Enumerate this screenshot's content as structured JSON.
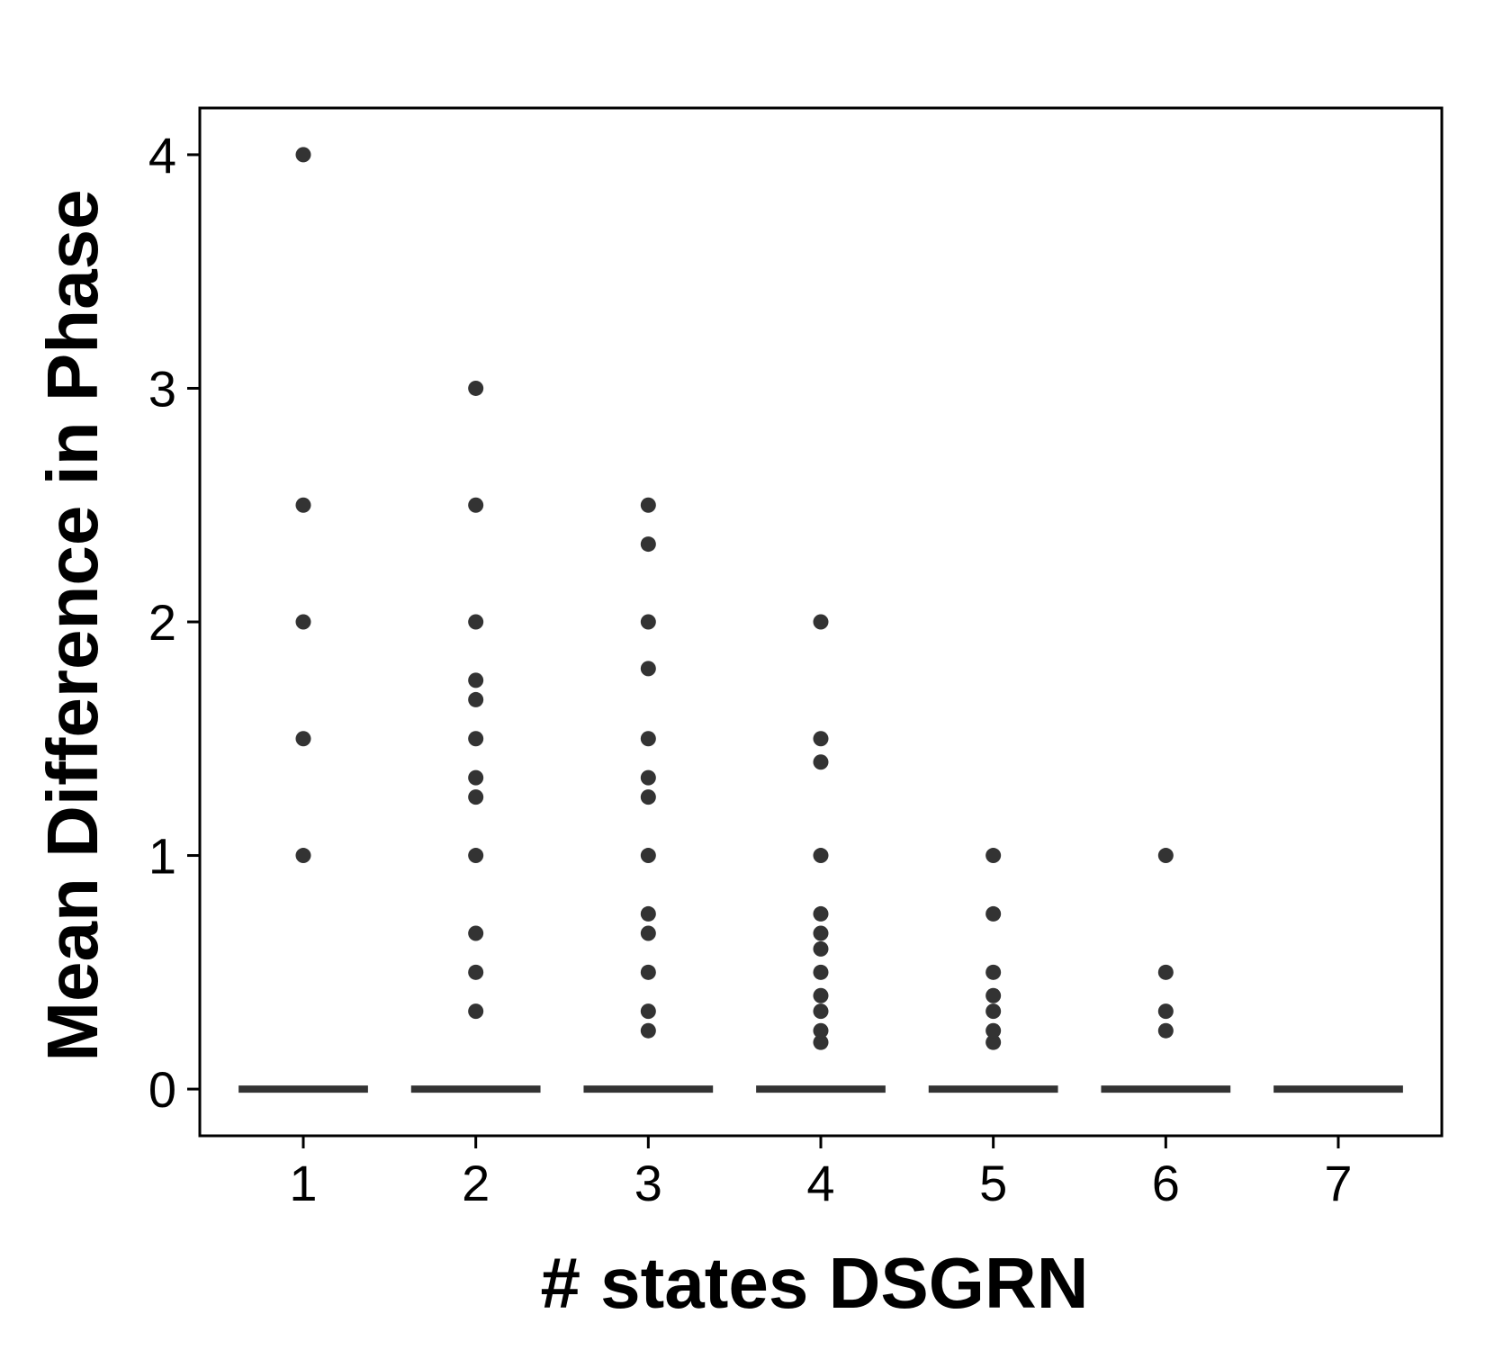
{
  "chart_data": {
    "type": "scatter",
    "title": "",
    "xlabel": "# states DSGRN",
    "ylabel": "Mean Difference in Phase",
    "xlim": [
      0.4,
      7.6
    ],
    "ylim": [
      -0.2,
      4.2
    ],
    "x_ticks": [
      "1",
      "2",
      "3",
      "4",
      "5",
      "6",
      "7"
    ],
    "y_ticks": [
      "0",
      "1",
      "2",
      "3",
      "4"
    ],
    "grid": false,
    "legend": "none",
    "colors": {
      "points": "#333333",
      "median": "#333333",
      "axis": "#000000"
    },
    "groups": [
      {
        "x": 1,
        "median": 0,
        "outliers": [
          1,
          1.5,
          2,
          2.5,
          4
        ]
      },
      {
        "x": 2,
        "median": 0,
        "outliers": [
          0.333,
          0.5,
          0.667,
          1,
          1.25,
          1.333,
          1.5,
          1.667,
          1.75,
          2,
          2.5,
          3
        ]
      },
      {
        "x": 3,
        "median": 0,
        "outliers": [
          0.25,
          0.333,
          0.5,
          0.667,
          0.75,
          1,
          1.25,
          1.333,
          1.5,
          1.8,
          2,
          2.333,
          2.5
        ]
      },
      {
        "x": 4,
        "median": 0,
        "outliers": [
          0.2,
          0.25,
          0.333,
          0.4,
          0.5,
          0.6,
          0.667,
          0.75,
          1,
          1.4,
          1.5,
          2
        ]
      },
      {
        "x": 5,
        "median": 0,
        "outliers": [
          0.2,
          0.25,
          0.333,
          0.4,
          0.5,
          0.75,
          1
        ]
      },
      {
        "x": 6,
        "median": 0,
        "outliers": [
          0.25,
          0.333,
          0.5,
          1
        ]
      },
      {
        "x": 7,
        "median": 0,
        "outliers": []
      }
    ]
  }
}
